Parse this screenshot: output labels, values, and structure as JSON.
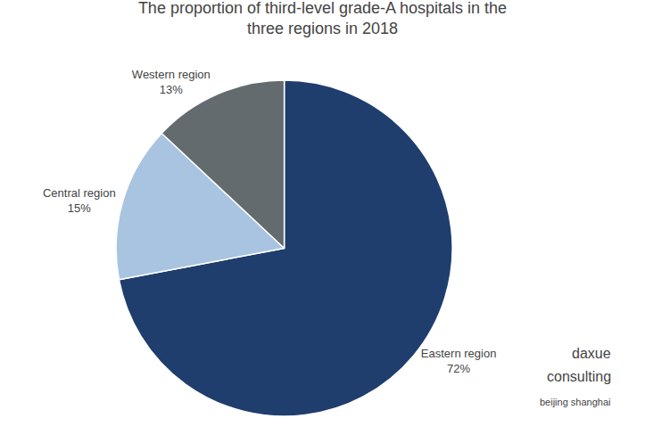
{
  "chart_data": {
    "type": "pie",
    "title": "The proportion of third-level grade-A hospitals in the\nthree regions in 2018",
    "categories": [
      "Eastern region",
      "Central region",
      "Western region"
    ],
    "values": [
      72,
      15,
      13
    ],
    "value_labels": [
      "72%",
      "15%",
      "13%"
    ],
    "colors": [
      "#1f3e6e",
      "#a8c4e0",
      "#636b6f"
    ],
    "data_labels": true,
    "annotations": [
      "daxue",
      "consulting",
      "beijing shanghai"
    ]
  }
}
